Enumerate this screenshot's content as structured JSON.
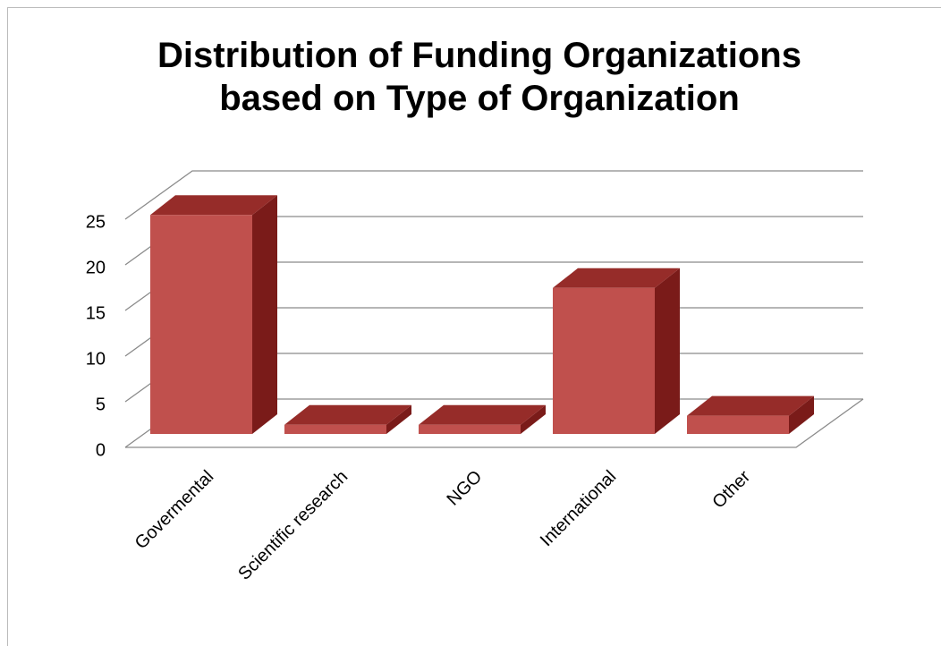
{
  "chart_data": {
    "type": "bar3d",
    "title": "Distribution of Funding Organizations based on Type of Organization",
    "categories": [
      "Govermental",
      "Scientific research",
      "NGO",
      "International",
      "Other"
    ],
    "values": [
      24,
      1,
      1,
      16,
      2
    ],
    "color": "#c0504d",
    "ylim": [
      0,
      25
    ],
    "yticks": [
      0,
      5,
      10,
      15,
      20,
      25
    ],
    "grid": true
  }
}
